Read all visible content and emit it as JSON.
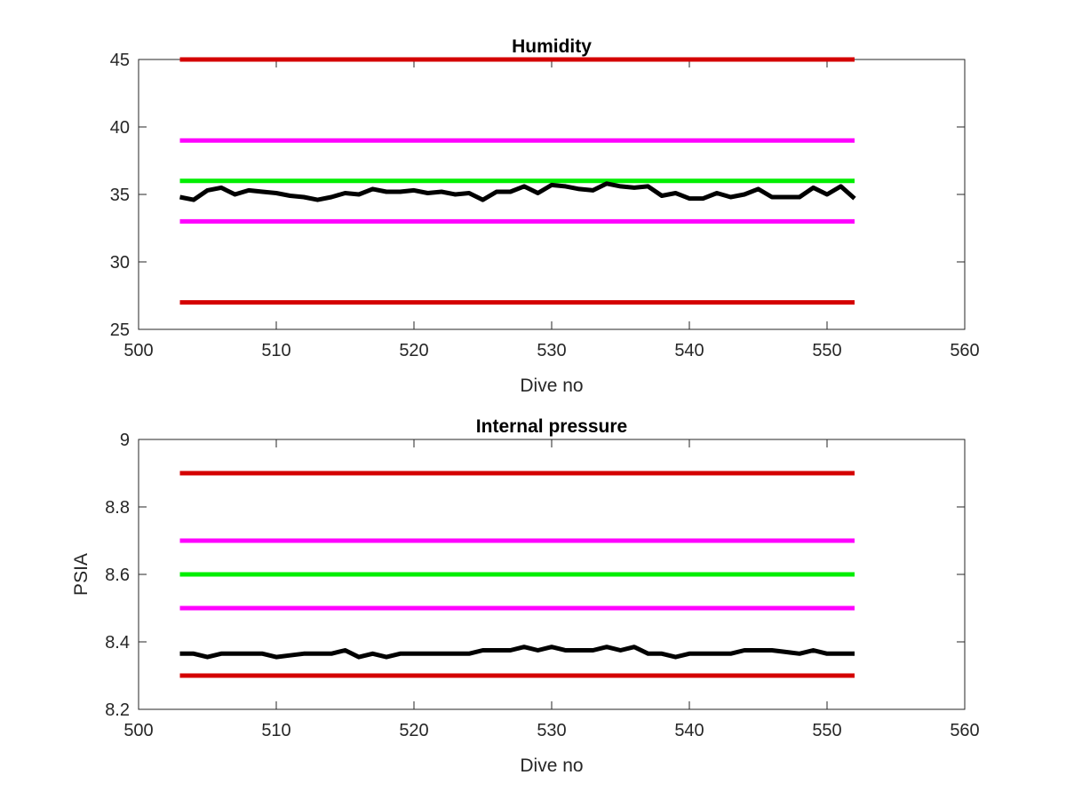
{
  "chart_data": [
    {
      "type": "line",
      "title": "Humidity",
      "xlabel": "Dive no",
      "ylabel": "",
      "xlim": [
        500,
        560
      ],
      "ylim": [
        25,
        45
      ],
      "xticks": [
        500,
        510,
        520,
        530,
        540,
        550,
        560
      ],
      "yticks": [
        25,
        30,
        35,
        40,
        45
      ],
      "grid": false,
      "series": [
        {
          "color": "#d40000",
          "x": [
            503,
            552
          ],
          "y": [
            45,
            45
          ]
        },
        {
          "color": "#ff00ff",
          "x": [
            503,
            552
          ],
          "y": [
            39,
            39
          ]
        },
        {
          "color": "#00ee00",
          "x": [
            503,
            552
          ],
          "y": [
            36,
            36
          ]
        },
        {
          "color": "#ff00ff",
          "x": [
            503,
            552
          ],
          "y": [
            33,
            33
          ]
        },
        {
          "color": "#d40000",
          "x": [
            503,
            552
          ],
          "y": [
            27,
            27
          ]
        },
        {
          "color": "#000000",
          "x": [
            503,
            504,
            505,
            506,
            507,
            508,
            509,
            510,
            511,
            512,
            513,
            514,
            515,
            516,
            517,
            518,
            519,
            520,
            521,
            522,
            523,
            524,
            525,
            526,
            527,
            528,
            529,
            530,
            531,
            532,
            533,
            534,
            535,
            536,
            537,
            538,
            539,
            540,
            541,
            542,
            543,
            544,
            545,
            546,
            547,
            548,
            549,
            550,
            551,
            552
          ],
          "y": [
            34.8,
            34.6,
            35.3,
            35.5,
            35.0,
            35.3,
            35.2,
            35.1,
            34.9,
            34.8,
            34.6,
            34.8,
            35.1,
            35.0,
            35.4,
            35.2,
            35.2,
            35.3,
            35.1,
            35.2,
            35.0,
            35.1,
            34.6,
            35.2,
            35.2,
            35.6,
            35.1,
            35.7,
            35.6,
            35.4,
            35.3,
            35.8,
            35.6,
            35.5,
            35.6,
            34.9,
            35.1,
            34.7,
            34.7,
            35.1,
            34.8,
            35.0,
            35.4,
            34.8,
            34.8,
            34.8,
            35.5,
            35.0,
            35.6,
            34.7
          ]
        }
      ]
    },
    {
      "type": "line",
      "title": "Internal pressure",
      "xlabel": "Dive no",
      "ylabel": "PSIA",
      "xlim": [
        500,
        560
      ],
      "ylim": [
        8.2,
        9
      ],
      "xticks": [
        500,
        510,
        520,
        530,
        540,
        550,
        560
      ],
      "yticks": [
        8.2,
        8.4,
        8.6,
        8.8,
        9
      ],
      "grid": false,
      "series": [
        {
          "color": "#d40000",
          "x": [
            503,
            552
          ],
          "y": [
            8.9,
            8.9
          ]
        },
        {
          "color": "#ff00ff",
          "x": [
            503,
            552
          ],
          "y": [
            8.7,
            8.7
          ]
        },
        {
          "color": "#00ee00",
          "x": [
            503,
            552
          ],
          "y": [
            8.6,
            8.6
          ]
        },
        {
          "color": "#ff00ff",
          "x": [
            503,
            552
          ],
          "y": [
            8.5,
            8.5
          ]
        },
        {
          "color": "#d40000",
          "x": [
            503,
            552
          ],
          "y": [
            8.3,
            8.3
          ]
        },
        {
          "color": "#000000",
          "x": [
            503,
            504,
            505,
            506,
            507,
            508,
            509,
            510,
            511,
            512,
            513,
            514,
            515,
            516,
            517,
            518,
            519,
            520,
            521,
            522,
            523,
            524,
            525,
            526,
            527,
            528,
            529,
            530,
            531,
            532,
            533,
            534,
            535,
            536,
            537,
            538,
            539,
            540,
            541,
            542,
            543,
            544,
            545,
            546,
            547,
            548,
            549,
            550,
            551,
            552
          ],
          "y": [
            8.365,
            8.365,
            8.355,
            8.365,
            8.365,
            8.365,
            8.365,
            8.355,
            8.36,
            8.365,
            8.365,
            8.365,
            8.375,
            8.355,
            8.365,
            8.355,
            8.365,
            8.365,
            8.365,
            8.365,
            8.365,
            8.365,
            8.375,
            8.375,
            8.375,
            8.385,
            8.375,
            8.385,
            8.375,
            8.375,
            8.375,
            8.385,
            8.375,
            8.385,
            8.365,
            8.365,
            8.355,
            8.365,
            8.365,
            8.365,
            8.365,
            8.375,
            8.375,
            8.375,
            8.37,
            8.365,
            8.375,
            8.365,
            8.365,
            8.365
          ]
        }
      ]
    }
  ]
}
